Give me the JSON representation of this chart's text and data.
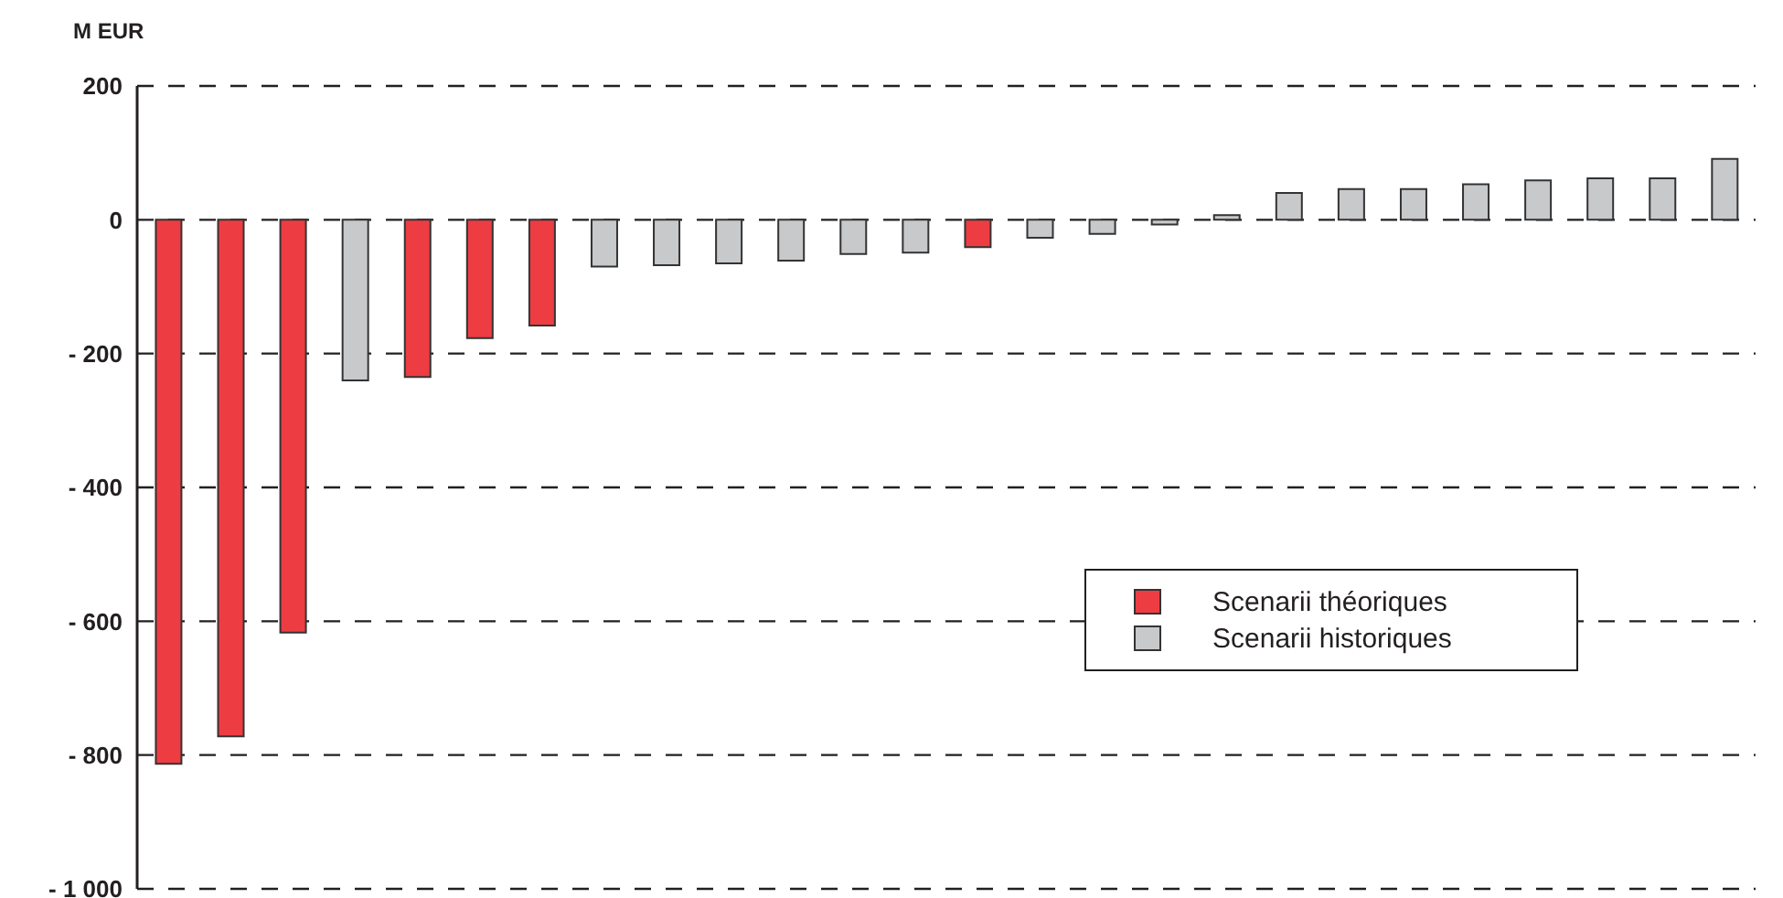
{
  "chart_data": {
    "type": "bar",
    "ylabel": "M EUR",
    "categories": [
      null,
      null,
      null,
      null,
      null,
      null,
      null,
      null,
      null,
      null,
      null,
      null,
      null,
      null,
      null,
      null,
      null,
      null,
      null,
      null,
      null,
      null,
      null,
      null,
      null,
      null
    ],
    "series": [
      {
        "name": "Scenarii théoriques",
        "color": "#ee3c43",
        "values": [
          -813,
          -772,
          -617,
          null,
          -235,
          -177,
          -158,
          null,
          null,
          null,
          null,
          null,
          null,
          -41,
          null,
          null,
          null,
          null,
          null,
          null,
          null,
          null,
          null,
          null,
          null,
          null
        ]
      },
      {
        "name": "Scenarii historiques",
        "color": "#c8c9cb",
        "values": [
          null,
          null,
          null,
          -240,
          null,
          null,
          null,
          -70,
          -68,
          -65,
          -61,
          -51,
          -49,
          null,
          -27,
          -21,
          -7,
          7,
          40,
          46,
          46,
          53,
          59,
          62,
          62,
          91
        ]
      }
    ],
    "ylim": [
      -1000,
      200
    ],
    "yticks": [
      {
        "value": 200,
        "label": "200"
      },
      {
        "value": 0,
        "label": "0"
      },
      {
        "value": -200,
        "label": "- 200"
      },
      {
        "value": -400,
        "label": "- 400"
      },
      {
        "value": -600,
        "label": "- 600"
      },
      {
        "value": -800,
        "label": "- 800"
      },
      {
        "value": -1000,
        "label": "- 1 000"
      }
    ],
    "grid": "y",
    "legend": "right"
  }
}
